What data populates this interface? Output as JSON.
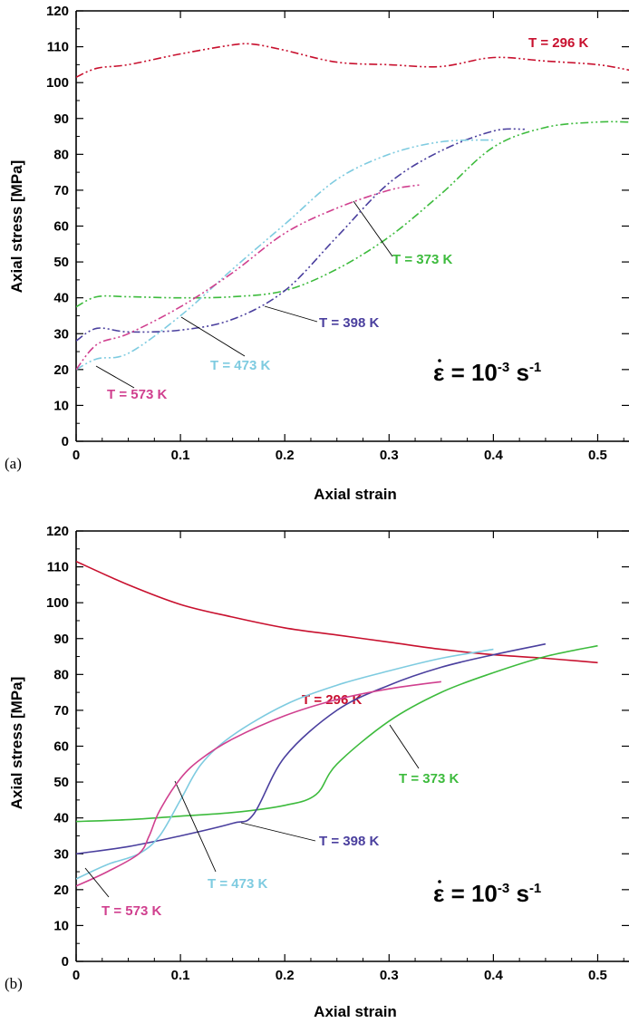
{
  "chart_data": [
    {
      "type": "line",
      "panel_label": "(a)",
      "xlabel": "Axial strain",
      "ylabel": "Axial stress [MPa]",
      "xlim": [
        0,
        0.53
      ],
      "ylim": [
        0,
        120
      ],
      "xticks": [
        "0",
        "0.1",
        "0.2",
        "0.3",
        "0.4",
        "0.5"
      ],
      "yticks": [
        "0",
        "10",
        "20",
        "30",
        "40",
        "50",
        "60",
        "70",
        "80",
        "90",
        "100",
        "110",
        "120"
      ],
      "line_style": "dash-dot-dot",
      "rate_label": {
        "base": "ε",
        "eq": " = 10",
        "exp": "-3",
        "unit": " s",
        "unit_exp": "-1"
      },
      "series": [
        {
          "name": "T = 296 K",
          "color": "#c8102e",
          "x": [
            0,
            0.02,
            0.05,
            0.1,
            0.15,
            0.17,
            0.2,
            0.25,
            0.3,
            0.35,
            0.4,
            0.45,
            0.5,
            0.53
          ],
          "y": [
            101.5,
            104,
            105,
            108,
            110.5,
            110.7,
            109,
            105.7,
            105,
            104.5,
            107,
            106,
            105,
            103.5
          ]
        },
        {
          "name": "T = 373 K",
          "color": "#3dbb3d",
          "x": [
            0,
            0.02,
            0.05,
            0.1,
            0.15,
            0.2,
            0.25,
            0.3,
            0.35,
            0.4,
            0.45,
            0.5,
            0.53
          ],
          "y": [
            37.5,
            40.3,
            40.3,
            40,
            40.3,
            42,
            48,
            57,
            69,
            82,
            87.5,
            89,
            89
          ]
        },
        {
          "name": "T = 398 K",
          "color": "#4a3f9e",
          "x": [
            0,
            0.02,
            0.05,
            0.1,
            0.15,
            0.2,
            0.25,
            0.3,
            0.35,
            0.4,
            0.43
          ],
          "y": [
            28,
            31.5,
            30.5,
            31,
            34,
            42,
            57,
            72,
            81,
            86.5,
            87
          ]
        },
        {
          "name": "T = 473 K",
          "color": "#7ecbe0",
          "x": [
            0,
            0.02,
            0.05,
            0.1,
            0.15,
            0.2,
            0.25,
            0.3,
            0.35,
            0.4
          ],
          "y": [
            20,
            23,
            24.5,
            35,
            48,
            60.5,
            73,
            80,
            83.5,
            84
          ]
        },
        {
          "name": "T = 573 K",
          "color": "#d0408f",
          "x": [
            0,
            0.02,
            0.05,
            0.1,
            0.15,
            0.2,
            0.25,
            0.3,
            0.33
          ],
          "y": [
            20,
            27,
            30,
            37.5,
            47,
            58,
            65,
            70,
            71.5
          ]
        }
      ]
    },
    {
      "type": "line",
      "panel_label": "(b)",
      "xlabel": "Axial strain",
      "ylabel": "Axial stress [MPa]",
      "xlim": [
        0,
        0.53
      ],
      "ylim": [
        0,
        120
      ],
      "xticks": [
        "0",
        "0.1",
        "0.2",
        "0.3",
        "0.4",
        "0.5"
      ],
      "yticks": [
        "0",
        "10",
        "20",
        "30",
        "40",
        "50",
        "60",
        "70",
        "80",
        "90",
        "100",
        "110",
        "120"
      ],
      "line_style": "solid",
      "rate_label": {
        "base": "ε",
        "eq": " = 10",
        "exp": "-3",
        "unit": " s",
        "unit_exp": "-1"
      },
      "series": [
        {
          "name": "T = 296 K",
          "color": "#c8102e",
          "x": [
            0,
            0.05,
            0.1,
            0.15,
            0.2,
            0.25,
            0.3,
            0.35,
            0.4,
            0.45,
            0.5
          ],
          "y": [
            111.5,
            105,
            99.5,
            96,
            93,
            91,
            89,
            87,
            85.5,
            84.5,
            83.3
          ]
        },
        {
          "name": "T = 373 K",
          "color": "#3dbb3d",
          "x": [
            0,
            0.05,
            0.1,
            0.15,
            0.2,
            0.23,
            0.25,
            0.3,
            0.35,
            0.4,
            0.45,
            0.5
          ],
          "y": [
            39,
            39.5,
            40.5,
            41.5,
            43.5,
            46.5,
            55,
            67,
            75,
            80.5,
            85,
            88
          ]
        },
        {
          "name": "T = 398 K",
          "color": "#4a3f9e",
          "x": [
            0,
            0.05,
            0.1,
            0.15,
            0.17,
            0.2,
            0.25,
            0.3,
            0.35,
            0.4,
            0.45
          ],
          "y": [
            30,
            32,
            35,
            38.5,
            41,
            57,
            70,
            77,
            82,
            85.5,
            88.5
          ]
        },
        {
          "name": "T = 473 K",
          "color": "#7ecbe0",
          "x": [
            0,
            0.03,
            0.06,
            0.08,
            0.1,
            0.12,
            0.15,
            0.2,
            0.25,
            0.3,
            0.35,
            0.4
          ],
          "y": [
            23,
            27,
            30,
            35,
            45,
            55,
            63,
            71.5,
            77,
            81,
            84.5,
            87
          ]
        },
        {
          "name": "T = 573 K",
          "color": "#d0408f",
          "x": [
            0,
            0.03,
            0.06,
            0.07,
            0.08,
            0.1,
            0.12,
            0.15,
            0.2,
            0.25,
            0.3,
            0.35
          ],
          "y": [
            21,
            25,
            30,
            35,
            42,
            51,
            56.5,
            62,
            68.5,
            73,
            76,
            78
          ]
        }
      ]
    }
  ]
}
